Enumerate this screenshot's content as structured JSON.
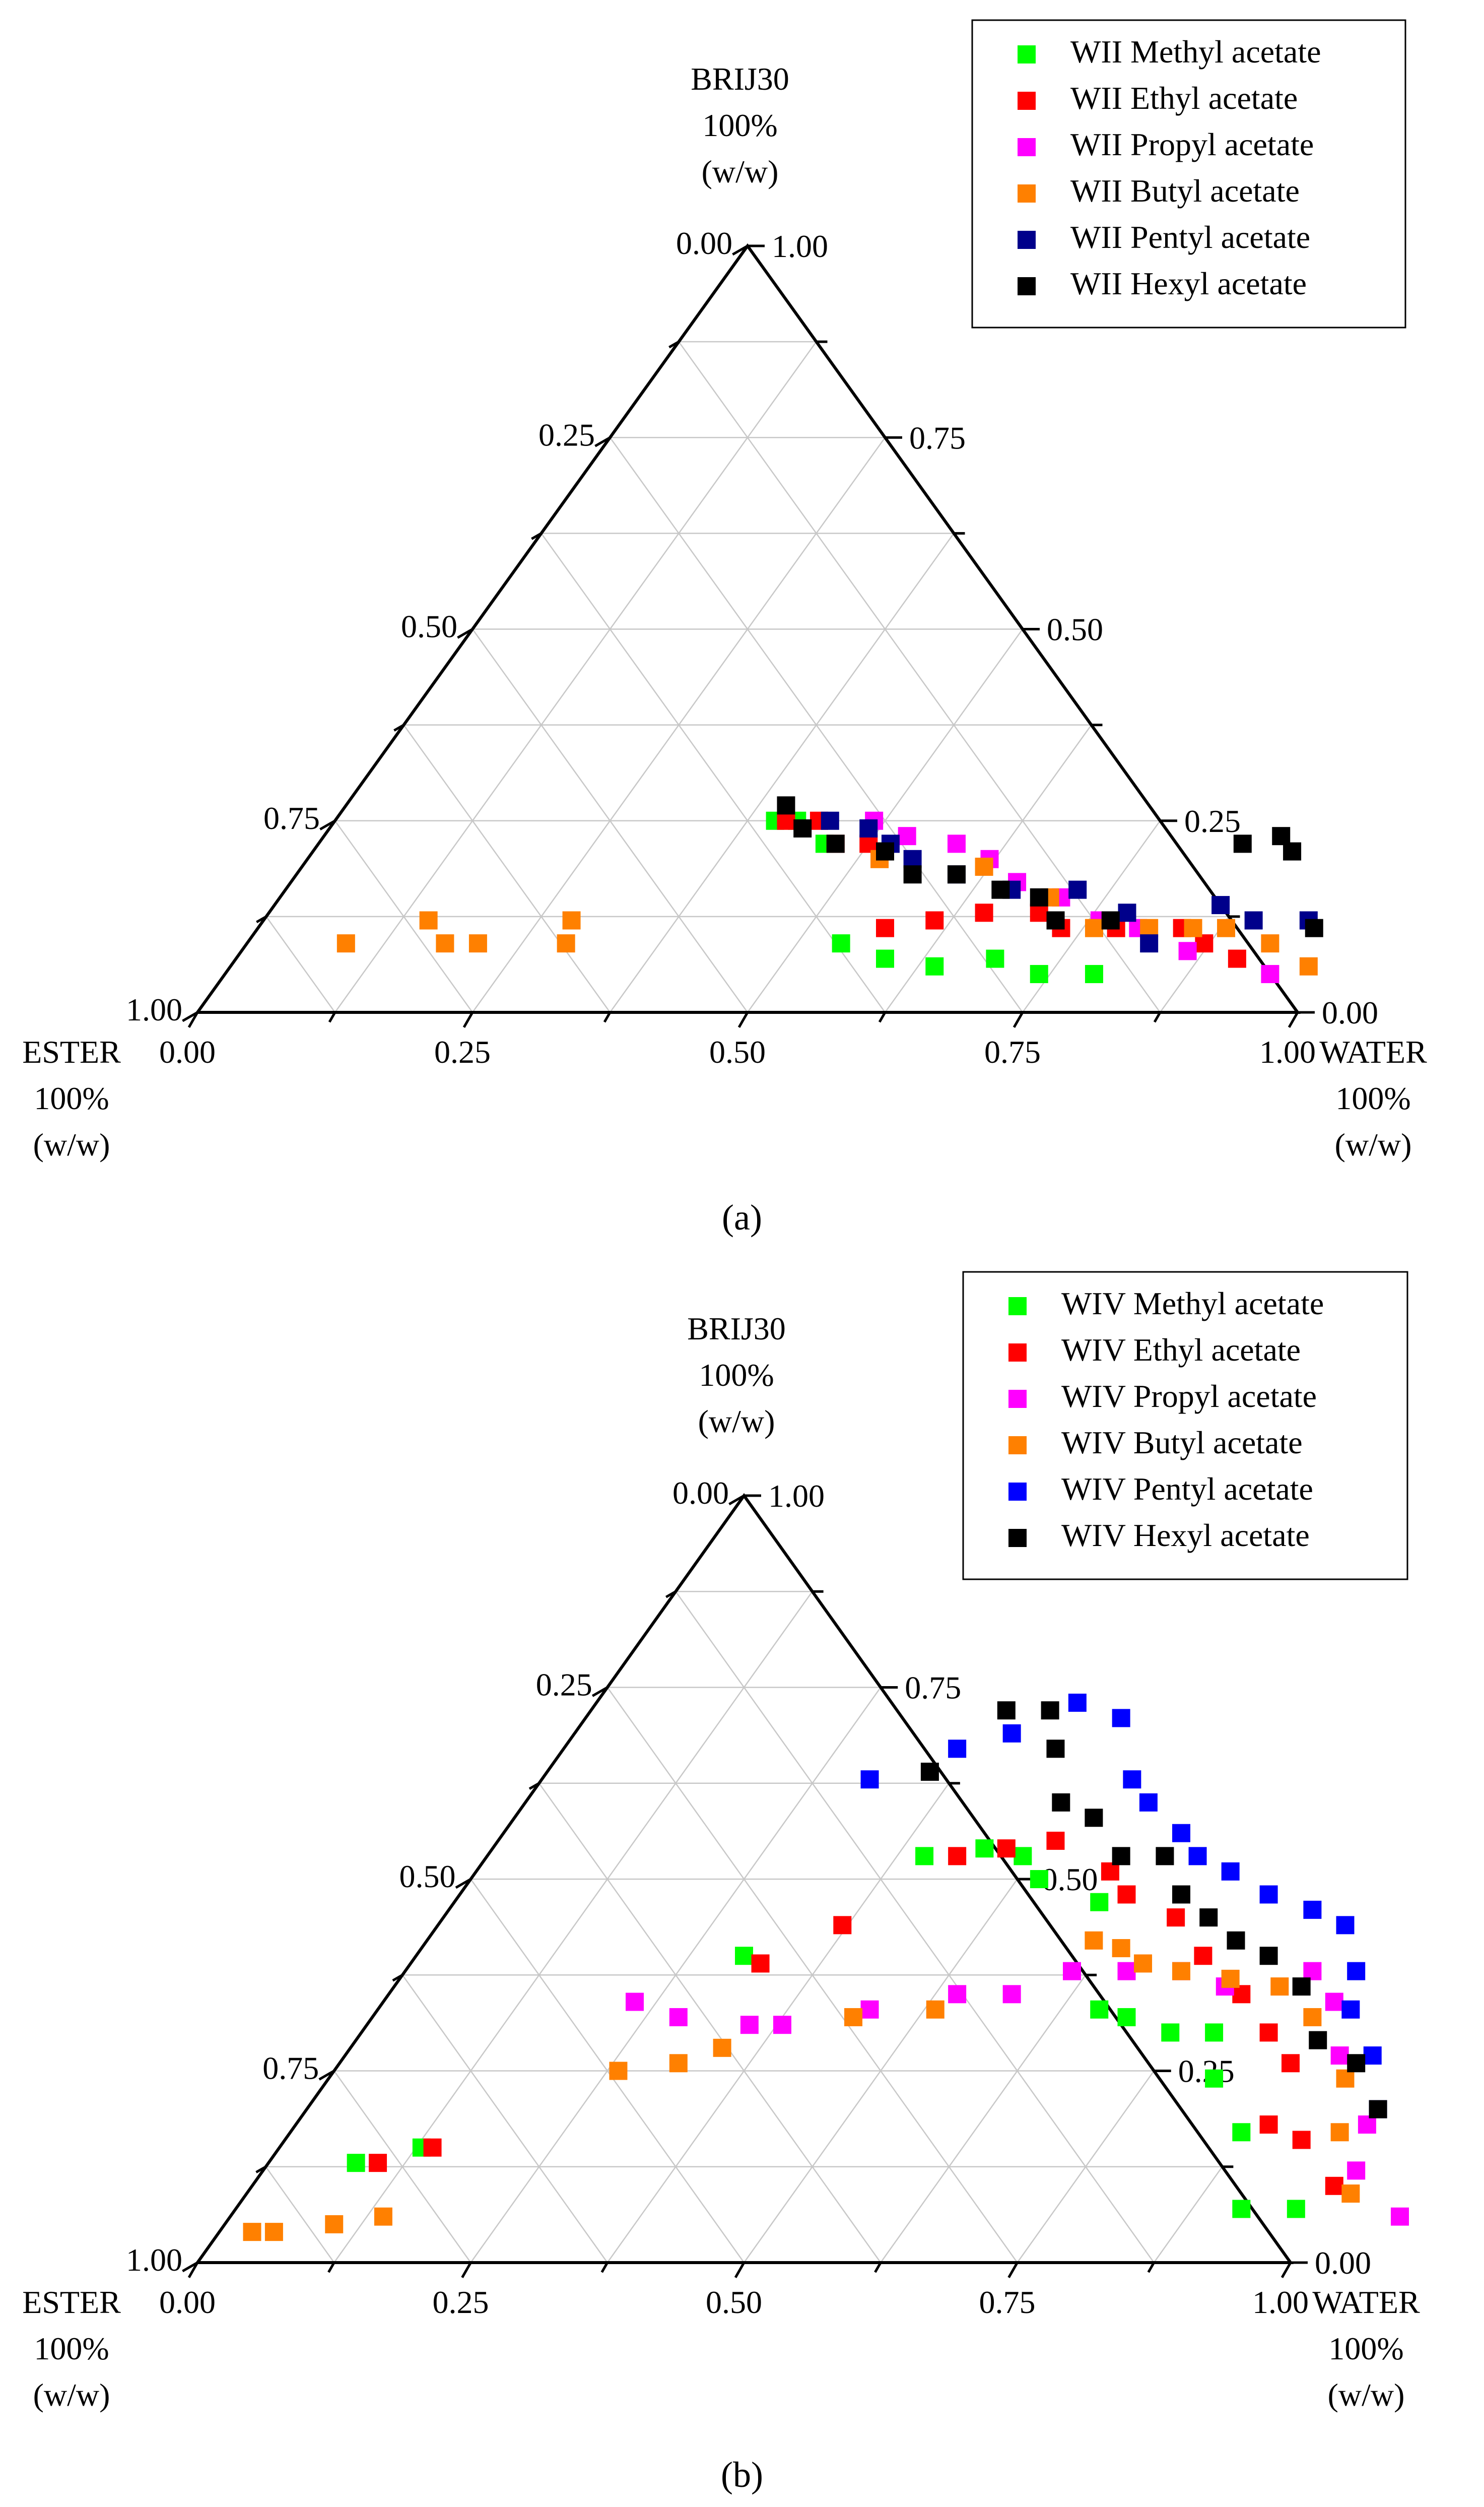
{
  "chart_data": [
    {
      "type": "scatter",
      "subtype": "ternary",
      "panel_label": "a",
      "apex_labels": {
        "top": [
          "BRIJ30",
          "100%",
          "(w/w)"
        ],
        "left": [
          "ESTER",
          "100%",
          "(w/w)"
        ],
        "right": [
          "WATER",
          "100%",
          "(w/w)"
        ]
      },
      "tick_labels": {
        "left": [
          "0.00",
          "0.25",
          "0.50",
          "0.75",
          "1.00"
        ],
        "right": [
          "1.00",
          "0.75",
          "0.50",
          "0.25",
          "0.00"
        ],
        "bottom": [
          "0.00",
          "0.25",
          "0.50",
          "0.75",
          "1.00"
        ]
      },
      "legend_placement": "top-right",
      "axes_note": "Points given as [water fraction, brij30 fraction]; ester = 1 - water - brij30",
      "series": [
        {
          "name": "WII Methyl acetate",
          "color": "#00ff00",
          "points": [
            [
              0.4,
              0.25
            ],
            [
              0.42,
              0.25
            ],
            [
              0.46,
              0.22
            ],
            [
              0.54,
              0.09
            ],
            [
              0.59,
              0.07
            ],
            [
              0.64,
              0.06
            ],
            [
              0.69,
              0.07
            ],
            [
              0.74,
              0.05
            ],
            [
              0.79,
              0.05
            ]
          ]
        },
        {
          "name": "WII Ethyl acetate",
          "color": "#ff0000",
          "points": [
            [
              0.41,
              0.25
            ],
            [
              0.44,
              0.25
            ],
            [
              0.47,
              0.22
            ],
            [
              0.5,
              0.22
            ],
            [
              0.57,
              0.11
            ],
            [
              0.61,
              0.12
            ],
            [
              0.65,
              0.13
            ],
            [
              0.7,
              0.13
            ],
            [
              0.73,
              0.11
            ],
            [
              0.78,
              0.11
            ],
            [
              0.84,
              0.11
            ],
            [
              0.87,
              0.09
            ],
            [
              0.91,
              0.07
            ]
          ]
        },
        {
          "name": "WII Propyl acetate",
          "color": "#ff00ff",
          "points": [
            [
              0.49,
              0.25
            ],
            [
              0.53,
              0.23
            ],
            [
              0.58,
              0.22
            ],
            [
              0.62,
              0.2
            ],
            [
              0.66,
              0.17
            ],
            [
              0.71,
              0.15
            ],
            [
              0.76,
              0.12
            ],
            [
              0.8,
              0.11
            ],
            [
              0.86,
              0.08
            ],
            [
              0.95,
              0.05
            ]
          ]
        },
        {
          "name": "WII Butyl acetate",
          "color": "#ff8000",
          "points": [
            [
              0.09,
              0.09
            ],
            [
              0.15,
              0.12
            ],
            [
              0.18,
              0.09
            ],
            [
              0.21,
              0.09
            ],
            [
              0.28,
              0.12
            ],
            [
              0.29,
              0.09
            ],
            [
              0.52,
              0.2
            ],
            [
              0.62,
              0.19
            ],
            [
              0.7,
              0.15
            ],
            [
              0.76,
              0.11
            ],
            [
              0.81,
              0.11
            ],
            [
              0.85,
              0.11
            ],
            [
              0.88,
              0.11
            ],
            [
              0.93,
              0.09
            ],
            [
              0.98,
              0.06
            ]
          ]
        },
        {
          "name": "WII Pentyl acetate",
          "color": "#00008b",
          "points": [
            [
              0.45,
              0.25
            ],
            [
              0.49,
              0.24
            ],
            [
              0.52,
              0.22
            ],
            [
              0.55,
              0.2
            ],
            [
              0.6,
              0.18
            ],
            [
              0.66,
              0.16
            ],
            [
              0.72,
              0.16
            ],
            [
              0.78,
              0.13
            ],
            [
              0.82,
              0.09
            ],
            [
              0.86,
              0.14
            ],
            [
              0.9,
              0.12
            ],
            [
              0.95,
              0.12
            ]
          ]
        },
        {
          "name": "WII Hexyl acetate",
          "color": "#000000",
          "points": [
            [
              0.4,
              0.27
            ],
            [
              0.43,
              0.24
            ],
            [
              0.47,
              0.22
            ],
            [
              0.52,
              0.21
            ],
            [
              0.56,
              0.18
            ],
            [
              0.6,
              0.18
            ],
            [
              0.65,
              0.16
            ],
            [
              0.69,
              0.15
            ],
            [
              0.72,
              0.12
            ],
            [
              0.77,
              0.12
            ],
            [
              0.84,
              0.22
            ],
            [
              0.87,
              0.23
            ],
            [
              0.89,
              0.21
            ],
            [
              0.96,
              0.11
            ]
          ]
        }
      ]
    },
    {
      "type": "scatter",
      "subtype": "ternary",
      "panel_label": "b",
      "apex_labels": {
        "top": [
          "BRIJ30",
          "100%",
          "(w/w)"
        ],
        "left": [
          "ESTER",
          "100%",
          "(w/w)"
        ],
        "right": [
          "WATER",
          "100%",
          "(w/w)"
        ]
      },
      "tick_labels": {
        "left": [
          "0.00",
          "0.25",
          "0.50",
          "0.75",
          "1.00"
        ],
        "right": [
          "1.00",
          "0.75",
          "0.50",
          "0.25",
          "0.00"
        ],
        "bottom": [
          "0.00",
          "0.25",
          "0.50",
          "0.75",
          "1.00"
        ]
      },
      "legend_placement": "top-right",
      "axes_note": "Points given as [water fraction, brij30 fraction]; ester = 1 - water - brij30",
      "series": [
        {
          "name": "WIV Methyl acetate",
          "color": "#00ff00",
          "points": [
            [
              0.08,
              0.13
            ],
            [
              0.13,
              0.15
            ],
            [
              0.3,
              0.4
            ],
            [
              0.4,
              0.53
            ],
            [
              0.45,
              0.54
            ],
            [
              0.49,
              0.53
            ],
            [
              0.52,
              0.5
            ],
            [
              0.59,
              0.47
            ],
            [
              0.66,
              0.33
            ],
            [
              0.69,
              0.32
            ],
            [
              0.74,
              0.3
            ],
            [
              0.78,
              0.3
            ],
            [
              0.81,
              0.24
            ],
            [
              0.87,
              0.17
            ],
            [
              0.92,
              0.07
            ],
            [
              0.97,
              0.07
            ]
          ]
        },
        {
          "name": "WIV Ethyl acetate",
          "color": "#ff0000",
          "points": [
            [
              0.1,
              0.13
            ],
            [
              0.14,
              0.15
            ],
            [
              0.32,
              0.39
            ],
            [
              0.37,
              0.44
            ],
            [
              0.43,
              0.53
            ],
            [
              0.47,
              0.54
            ],
            [
              0.51,
              0.55
            ],
            [
              0.58,
              0.51
            ],
            [
              0.61,
              0.48
            ],
            [
              0.67,
              0.45
            ],
            [
              0.72,
              0.4
            ],
            [
              0.78,
              0.35
            ],
            [
              0.83,
              0.3
            ],
            [
              0.87,
              0.26
            ],
            [
              0.89,
              0.18
            ],
            [
              0.93,
              0.16
            ],
            [
              0.99,
              0.1
            ]
          ]
        },
        {
          "name": "WIV Propyl acetate",
          "color": "#ff00ff",
          "points": [
            [
              0.23,
              0.34
            ],
            [
              0.28,
              0.32
            ],
            [
              0.35,
              0.31
            ],
            [
              0.38,
              0.31
            ],
            [
              0.45,
              0.33
            ],
            [
              0.52,
              0.35
            ],
            [
              0.57,
              0.35
            ],
            [
              0.61,
              0.38
            ],
            [
              0.66,
              0.38
            ],
            [
              0.71,
              0.38
            ],
            [
              0.76,
              0.36
            ],
            [
              0.83,
              0.38
            ],
            [
              0.87,
              0.34
            ],
            [
              0.91,
              0.27
            ],
            [
              0.98,
              0.18
            ],
            [
              1.0,
              0.12
            ],
            [
              1.07,
              0.06
            ]
          ]
        },
        {
          "name": "WIV Butyl acetate",
          "color": "#ff8000",
          "points": [
            [
              0.03,
              0.04
            ],
            [
              0.05,
              0.04
            ],
            [
              0.1,
              0.05
            ],
            [
              0.14,
              0.06
            ],
            [
              0.26,
              0.25
            ],
            [
              0.31,
              0.26
            ],
            [
              0.34,
              0.28
            ],
            [
              0.44,
              0.32
            ],
            [
              0.51,
              0.33
            ],
            [
              0.61,
              0.42
            ],
            [
              0.64,
              0.41
            ],
            [
              0.67,
              0.39
            ],
            [
              0.71,
              0.38
            ],
            [
              0.76,
              0.37
            ],
            [
              0.81,
              0.36
            ],
            [
              0.86,
              0.32
            ],
            [
              0.93,
              0.24
            ],
            [
              0.96,
              0.17
            ],
            [
              1.01,
              0.09
            ]
          ]
        },
        {
          "name": "WIV Pentyl acetate",
          "color": "#0000ff",
          "points": [
            [
              0.3,
              0.63
            ],
            [
              0.36,
              0.67
            ],
            [
              0.4,
              0.69
            ],
            [
              0.44,
              0.73
            ],
            [
              0.49,
              0.71
            ],
            [
              0.54,
              0.63
            ],
            [
              0.57,
              0.6
            ],
            [
              0.62,
              0.56
            ],
            [
              0.65,
              0.53
            ],
            [
              0.69,
              0.51
            ],
            [
              0.74,
              0.48
            ],
            [
              0.79,
              0.46
            ],
            [
              0.83,
              0.44
            ],
            [
              0.87,
              0.38
            ],
            [
              0.89,
              0.33
            ],
            [
              0.94,
              0.27
            ],
            [
              0.98,
              0.2
            ]
          ]
        },
        {
          "name": "WIV Hexyl acetate",
          "color": "#000000",
          "points": [
            [
              0.35,
              0.64
            ],
            [
              0.38,
              0.72
            ],
            [
              0.42,
              0.72
            ],
            [
              0.45,
              0.67
            ],
            [
              0.49,
              0.6
            ],
            [
              0.53,
              0.58
            ],
            [
              0.58,
              0.53
            ],
            [
              0.62,
              0.53
            ],
            [
              0.66,
              0.48
            ],
            [
              0.7,
              0.45
            ],
            [
              0.74,
              0.42
            ],
            [
              0.78,
              0.4
            ],
            [
              0.83,
              0.36
            ],
            [
              0.88,
              0.29
            ],
            [
              0.93,
              0.26
            ],
            [
              0.98,
              0.2
            ]
          ]
        }
      ]
    }
  ]
}
